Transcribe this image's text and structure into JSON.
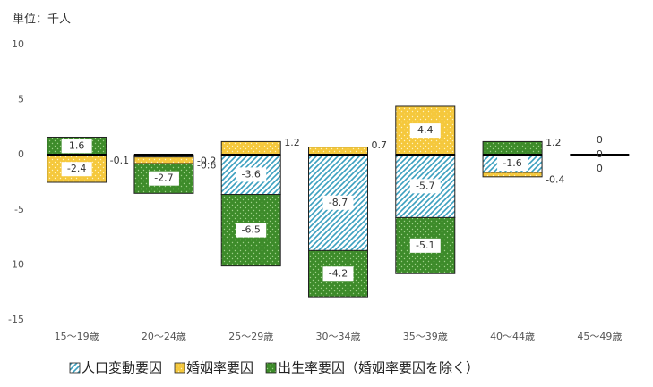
{
  "chart_data": {
    "type": "stacked_bar",
    "unit_label": "単位：千人",
    "categories": [
      "15〜19歳",
      "20〜24歳",
      "25〜29歳",
      "30〜34歳",
      "35〜39歳",
      "40〜44歳",
      "45〜49歳"
    ],
    "series": [
      {
        "name": "人口変動要因",
        "color": "#3a9fbf",
        "values": [
          -0.1,
          -0.2,
          -3.6,
          -8.7,
          -5.7,
          -1.6,
          0.0
        ]
      },
      {
        "name": "婚姻率要因",
        "color": "#f5c83c",
        "values": [
          -2.4,
          -0.6,
          1.2,
          0.7,
          4.4,
          -0.4,
          0.0
        ]
      },
      {
        "name": "出生率要因（婚姻率要因を除く）",
        "color": "#3d8b2a",
        "values": [
          1.6,
          -2.7,
          -6.5,
          -4.2,
          -5.1,
          1.2,
          0.0
        ]
      }
    ],
    "ylim": [
      -15,
      10
    ],
    "yticks": [
      -15,
      -10,
      -5,
      0,
      5,
      10
    ],
    "grid": false
  }
}
